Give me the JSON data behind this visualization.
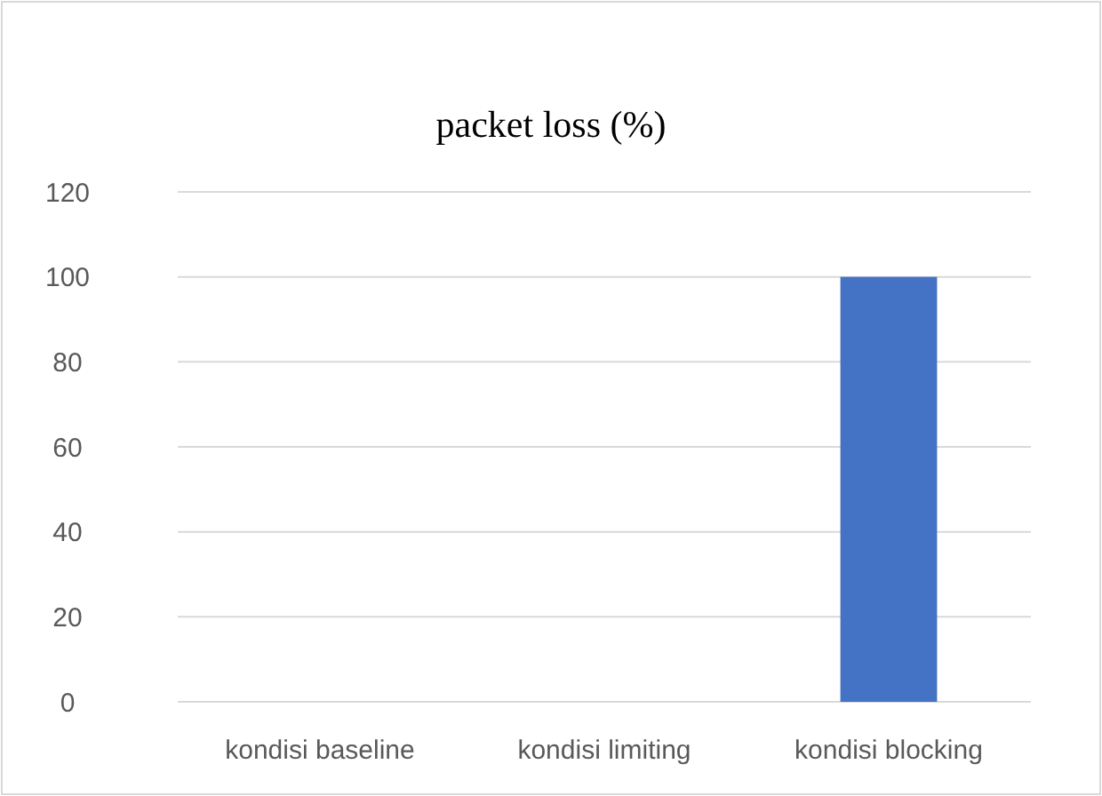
{
  "chart_data": {
    "type": "bar",
    "title": "packet loss (%)",
    "categories": [
      "kondisi baseline",
      "kondisi limiting",
      "kondisi blocking"
    ],
    "values": [
      0,
      0,
      100
    ],
    "color": "#4472c4",
    "ylim": [
      0,
      120
    ],
    "yticks": [
      0,
      20,
      40,
      60,
      80,
      100,
      120
    ],
    "grid": "y"
  }
}
